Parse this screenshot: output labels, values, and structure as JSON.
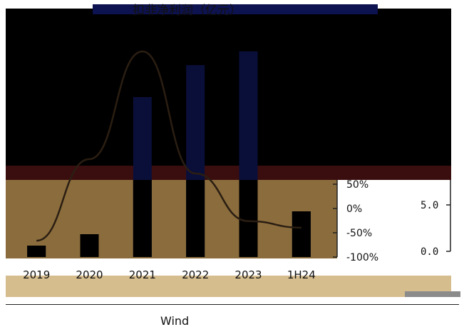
{
  "source_text": "Wind",
  "chart_data": {
    "type": "bar",
    "title": "扣非净利润（亿元）",
    "categories": [
      "2019",
      "2020",
      "2021",
      "2022",
      "2023",
      "1H24"
    ],
    "series": [
      {
        "values": [
          0.5,
          1.0,
          7.0,
          8.4,
          9.0,
          2.0
        ],
        "color": "#0a0f3a"
      }
    ],
    "line_series": [
      {
        "values": [
          -75,
          50,
          215,
          28,
          -45,
          -55
        ],
        "color": "#2b1e12"
      }
    ],
    "left_axis": {
      "ticks": [],
      "ylim": [
        0,
        10
      ]
    },
    "right_axis_1": {
      "ticks": [
        "50%",
        "0%",
        "-50%",
        "-100%"
      ],
      "ylim": [
        -100,
        250
      ]
    },
    "right_axis_2": {
      "ticks": [
        "5.0",
        "0.0"
      ]
    },
    "colors": {
      "background_upper": "#000000",
      "background_lower": "#8b6d3d",
      "band_top": "#0d1250",
      "band_red": "#3a0e0e",
      "bottom_strip": "#d6bd8e"
    }
  }
}
